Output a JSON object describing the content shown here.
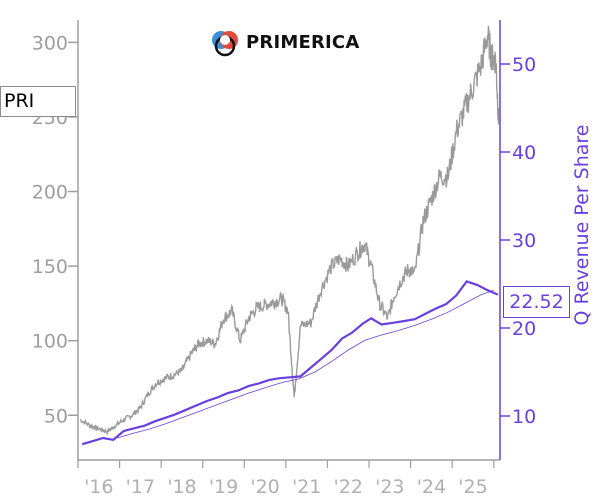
{
  "ticker": "PRI",
  "logo_text": "PRIMERICA",
  "current_value": "22.52",
  "colors": {
    "price_line": "#9a9a9a",
    "revenue_line": "#6a3fe0",
    "left_axis": "#9e9e9e",
    "right_axis": "#6a3fe0"
  },
  "chart_data": {
    "type": "line",
    "ylabel_right": "Q Revenue Per Share",
    "x_ticks": [
      "'16",
      "'17",
      "'18",
      "'19",
      "'20",
      "'21",
      "'22",
      "'23",
      "'24",
      "'25"
    ],
    "y_left_ticks": [
      50,
      100,
      150,
      200,
      250,
      300
    ],
    "y_right_ticks": [
      10,
      20,
      30,
      40,
      50
    ],
    "ylim_left": [
      20,
      315
    ],
    "ylim_right": [
      5,
      55
    ],
    "xlim": [
      2015.0,
      2025.15
    ],
    "series": [
      {
        "name": "PRI",
        "axis": "left",
        "values_xy": [
          [
            2015.05,
            47
          ],
          [
            2015.3,
            43
          ],
          [
            2015.5,
            41
          ],
          [
            2015.7,
            39
          ],
          [
            2015.9,
            43
          ],
          [
            2016.1,
            47
          ],
          [
            2016.3,
            50
          ],
          [
            2016.5,
            55
          ],
          [
            2016.7,
            65
          ],
          [
            2016.9,
            72
          ],
          [
            2017.1,
            75
          ],
          [
            2017.3,
            77
          ],
          [
            2017.5,
            80
          ],
          [
            2017.7,
            90
          ],
          [
            2017.9,
            98
          ],
          [
            2018.1,
            100
          ],
          [
            2018.3,
            98
          ],
          [
            2018.5,
            115
          ],
          [
            2018.7,
            120
          ],
          [
            2018.9,
            100
          ],
          [
            2019.1,
            115
          ],
          [
            2019.3,
            122
          ],
          [
            2019.5,
            124
          ],
          [
            2019.7,
            126
          ],
          [
            2019.9,
            128
          ],
          [
            2020.05,
            120
          ],
          [
            2020.2,
            62
          ],
          [
            2020.35,
            110
          ],
          [
            2020.6,
            112
          ],
          [
            2020.85,
            135
          ],
          [
            2021.1,
            150
          ],
          [
            2021.3,
            155
          ],
          [
            2021.5,
            150
          ],
          [
            2021.75,
            160
          ],
          [
            2021.9,
            165
          ],
          [
            2022.05,
            150
          ],
          [
            2022.25,
            125
          ],
          [
            2022.45,
            115
          ],
          [
            2022.6,
            130
          ],
          [
            2022.8,
            142
          ],
          [
            2022.95,
            148
          ],
          [
            2023.1,
            145
          ],
          [
            2023.3,
            180
          ],
          [
            2023.5,
            195
          ],
          [
            2023.7,
            210
          ],
          [
            2023.9,
            210
          ],
          [
            2024.1,
            240
          ],
          [
            2024.3,
            255
          ],
          [
            2024.5,
            270
          ],
          [
            2024.7,
            285
          ],
          [
            2024.85,
            305
          ],
          [
            2024.95,
            290
          ],
          [
            2025.05,
            288
          ],
          [
            2025.12,
            245
          ]
        ]
      },
      {
        "name": "Q Revenue Per Share",
        "axis": "right",
        "values_xy": [
          [
            2015.1,
            6.8
          ],
          [
            2015.4,
            7.2
          ],
          [
            2015.6,
            7.5
          ],
          [
            2015.85,
            7.3
          ],
          [
            2016.1,
            8.3
          ],
          [
            2016.35,
            8.6
          ],
          [
            2016.6,
            8.9
          ],
          [
            2016.85,
            9.4
          ],
          [
            2017.1,
            9.8
          ],
          [
            2017.35,
            10.2
          ],
          [
            2017.6,
            10.7
          ],
          [
            2017.85,
            11.2
          ],
          [
            2018.1,
            11.7
          ],
          [
            2018.35,
            12.1
          ],
          [
            2018.6,
            12.6
          ],
          [
            2018.85,
            12.9
          ],
          [
            2019.1,
            13.4
          ],
          [
            2019.35,
            13.7
          ],
          [
            2019.6,
            14.1
          ],
          [
            2019.85,
            14.3
          ],
          [
            2020.1,
            14.4
          ],
          [
            2020.35,
            14.5
          ],
          [
            2020.6,
            15.5
          ],
          [
            2020.85,
            16.5
          ],
          [
            2021.1,
            17.5
          ],
          [
            2021.35,
            18.8
          ],
          [
            2021.6,
            19.5
          ],
          [
            2021.85,
            20.5
          ],
          [
            2022.05,
            21.1
          ],
          [
            2022.3,
            20.4
          ],
          [
            2022.6,
            20.6
          ],
          [
            2022.85,
            20.8
          ],
          [
            2023.1,
            21.0
          ],
          [
            2023.35,
            21.6
          ],
          [
            2023.6,
            22.2
          ],
          [
            2023.85,
            22.7
          ],
          [
            2024.1,
            23.7
          ],
          [
            2024.35,
            25.3
          ],
          [
            2024.6,
            24.9
          ],
          [
            2024.85,
            24.3
          ],
          [
            2025.1,
            23.8
          ]
        ]
      },
      {
        "name": "thin",
        "axis": "right",
        "values_xy": [
          [
            2015.95,
            7.5
          ],
          [
            2016.3,
            8.0
          ],
          [
            2016.7,
            8.5
          ],
          [
            2017.1,
            9.1
          ],
          [
            2017.5,
            9.8
          ],
          [
            2017.9,
            10.5
          ],
          [
            2018.3,
            11.2
          ],
          [
            2018.7,
            11.9
          ],
          [
            2019.1,
            12.6
          ],
          [
            2019.5,
            13.2
          ],
          [
            2019.9,
            13.8
          ],
          [
            2020.3,
            14.2
          ],
          [
            2020.7,
            15.0
          ],
          [
            2021.1,
            16.2
          ],
          [
            2021.5,
            17.5
          ],
          [
            2021.9,
            18.6
          ],
          [
            2022.3,
            19.2
          ],
          [
            2022.7,
            19.7
          ],
          [
            2023.1,
            20.3
          ],
          [
            2023.5,
            21.0
          ],
          [
            2023.9,
            21.8
          ],
          [
            2024.3,
            22.8
          ],
          [
            2024.7,
            23.8
          ],
          [
            2025.0,
            24.3
          ]
        ]
      }
    ]
  }
}
